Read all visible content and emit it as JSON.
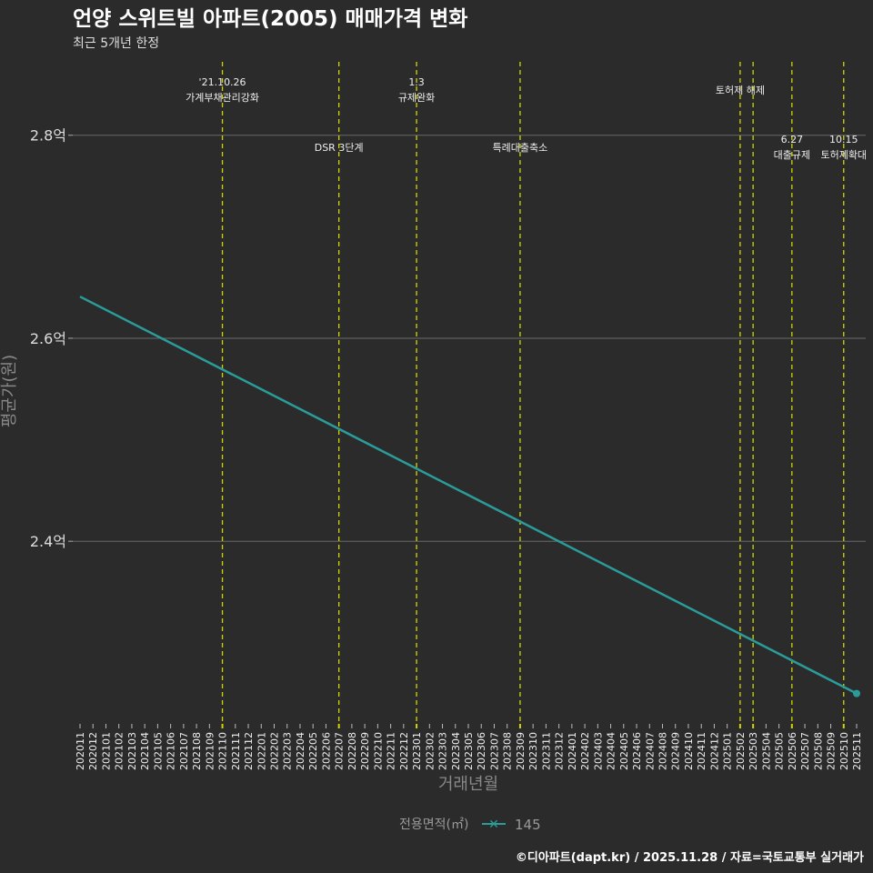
{
  "chart_data": {
    "type": "line",
    "title": "언양 스위트빌 아파트(2005) 매매가격 변화",
    "subtitle": "최근 5개년 한정",
    "xlabel": "거래년월",
    "ylabel": "평균가(원)",
    "x_ticks": [
      "202011",
      "202012",
      "202101",
      "202102",
      "202103",
      "202104",
      "202105",
      "202106",
      "202107",
      "202108",
      "202109",
      "202110",
      "202111",
      "202112",
      "202201",
      "202202",
      "202203",
      "202204",
      "202205",
      "202206",
      "202207",
      "202208",
      "202209",
      "202210",
      "202211",
      "202212",
      "202301",
      "202302",
      "202303",
      "202304",
      "202305",
      "202306",
      "202307",
      "202308",
      "202309",
      "202310",
      "202311",
      "202312",
      "202401",
      "202402",
      "202403",
      "202404",
      "202405",
      "202406",
      "202407",
      "202408",
      "202409",
      "202410",
      "202411",
      "202412",
      "202501",
      "202502",
      "202503",
      "202504",
      "202505",
      "202506",
      "202507",
      "202508",
      "202509",
      "202510",
      "202511"
    ],
    "y_ticks": [
      {
        "value": 2.4,
        "label": "2.4억"
      },
      {
        "value": 2.6,
        "label": "2.6억"
      },
      {
        "value": 2.8,
        "label": "2.8억"
      }
    ],
    "ylim": [
      2.221,
      2.875
    ],
    "grid": true,
    "legend": {
      "title": "전용면적(㎡)",
      "placement": "bottom"
    },
    "series": [
      {
        "name": "145",
        "color": "#2a9d9a",
        "points": [
          {
            "x": "202011",
            "y": 2.641
          },
          {
            "x": "202511",
            "y": 2.25
          }
        ],
        "marker_at_end": true
      }
    ],
    "events": [
      {
        "x": "202110",
        "lines": [
          "'21.10.26",
          "가계부채관리강화"
        ],
        "row": "top"
      },
      {
        "x": "202207",
        "lines": [
          "DSR 3단계"
        ],
        "row": "low"
      },
      {
        "x": "202301",
        "lines": [
          "1.3",
          "규제완화"
        ],
        "row": "top"
      },
      {
        "x": "202309",
        "lines": [
          "특례대출축소"
        ],
        "row": "low"
      },
      {
        "x": "202502",
        "lines": [
          "토허제 해제"
        ],
        "row": "mid"
      },
      {
        "x": "202503",
        "lines": [],
        "row": "none"
      },
      {
        "x": "202506",
        "lines": [
          "6.27",
          "대출규제"
        ],
        "row": "low2"
      },
      {
        "x": "202510",
        "lines": [
          "10.15",
          "토허제확대"
        ],
        "row": "low2"
      }
    ],
    "caption": "©디아파트(dapt.kr) / 2025.11.28 / 자료=국토교통부 실거래가"
  }
}
